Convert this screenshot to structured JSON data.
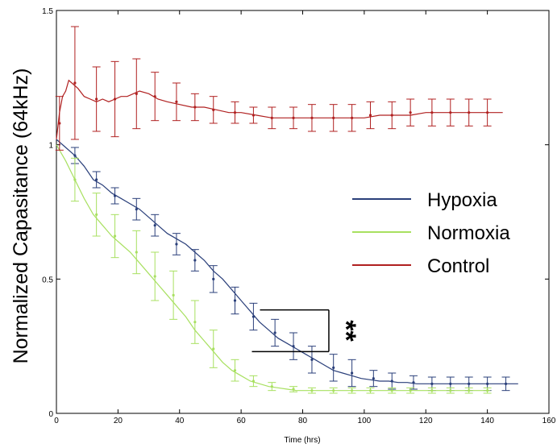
{
  "chart_data": {
    "type": "line",
    "title": "",
    "xlabel": "Time (hrs)",
    "ylabel": "Normalized Capasitance  (64kHz)",
    "xlim": [
      0,
      160
    ],
    "ylim": [
      0,
      1.5
    ],
    "xticks": [
      "0",
      "20",
      "40",
      "60",
      "80",
      "100",
      "120",
      "140",
      "160"
    ],
    "yticks": [
      "0",
      "0.5",
      "1",
      "1.5"
    ],
    "grid": false,
    "legend_position": "right",
    "significance_label": "**",
    "series": [
      {
        "name": "Hypoxia",
        "color": "#2a3f7a",
        "x": [
          0,
          3,
          6,
          9,
          12,
          15,
          18,
          21,
          24,
          27,
          30,
          33,
          36,
          39,
          42,
          45,
          48,
          51,
          54,
          57,
          60,
          63,
          66,
          69,
          72,
          75,
          78,
          81,
          84,
          87,
          90,
          93,
          96,
          99,
          102,
          105,
          108,
          111,
          114,
          117,
          120,
          123,
          126,
          129,
          132,
          135,
          138,
          141,
          144,
          147,
          150
        ],
        "y": [
          1.02,
          0.99,
          0.96,
          0.92,
          0.87,
          0.85,
          0.82,
          0.8,
          0.78,
          0.76,
          0.73,
          0.7,
          0.67,
          0.65,
          0.63,
          0.6,
          0.57,
          0.53,
          0.5,
          0.46,
          0.42,
          0.38,
          0.34,
          0.31,
          0.28,
          0.26,
          0.24,
          0.22,
          0.2,
          0.18,
          0.16,
          0.15,
          0.14,
          0.13,
          0.125,
          0.12,
          0.12,
          0.115,
          0.115,
          0.11,
          0.11,
          0.11,
          0.11,
          0.11,
          0.11,
          0.11,
          0.11,
          0.11,
          0.11,
          0.11,
          0.11
        ],
        "error_x": [
          6,
          13,
          19,
          26,
          32,
          39,
          45,
          51,
          58,
          64,
          71,
          77,
          83,
          90,
          96,
          103,
          109,
          116,
          122,
          128,
          134,
          140,
          146
        ],
        "error_y": [
          0.96,
          0.87,
          0.81,
          0.76,
          0.7,
          0.63,
          0.57,
          0.5,
          0.42,
          0.36,
          0.3,
          0.25,
          0.2,
          0.17,
          0.15,
          0.13,
          0.12,
          0.115,
          0.11,
          0.11,
          0.11,
          0.11,
          0.11
        ],
        "error_half": [
          0.03,
          0.03,
          0.03,
          0.04,
          0.04,
          0.04,
          0.04,
          0.05,
          0.05,
          0.05,
          0.05,
          0.05,
          0.05,
          0.05,
          0.05,
          0.03,
          0.03,
          0.025,
          0.025,
          0.025,
          0.025,
          0.025,
          0.025
        ]
      },
      {
        "name": "Normoxia",
        "color": "#a8e060",
        "x": [
          0,
          3,
          6,
          9,
          12,
          15,
          18,
          21,
          24,
          27,
          30,
          33,
          36,
          39,
          42,
          45,
          48,
          51,
          54,
          57,
          60,
          63,
          66,
          69,
          72,
          75,
          78,
          81,
          84,
          87,
          90,
          93,
          96,
          99,
          102,
          105,
          108,
          111,
          114,
          117,
          120,
          123,
          126,
          129,
          132,
          135,
          138,
          141
        ],
        "y": [
          1.0,
          0.94,
          0.87,
          0.8,
          0.74,
          0.7,
          0.66,
          0.63,
          0.6,
          0.56,
          0.52,
          0.48,
          0.44,
          0.4,
          0.36,
          0.31,
          0.27,
          0.23,
          0.19,
          0.16,
          0.14,
          0.12,
          0.11,
          0.1,
          0.095,
          0.09,
          0.085,
          0.085,
          0.085,
          0.085,
          0.085,
          0.085,
          0.085,
          0.085,
          0.085,
          0.085,
          0.085,
          0.085,
          0.085,
          0.085,
          0.085,
          0.085,
          0.085,
          0.085,
          0.085,
          0.085,
          0.085,
          0.085
        ],
        "error_x": [
          6,
          13,
          19,
          26,
          32,
          38,
          45,
          51,
          58,
          64,
          70,
          77,
          83,
          90,
          96,
          102,
          109,
          115,
          122,
          128,
          134,
          140
        ],
        "error_y": [
          0.87,
          0.74,
          0.66,
          0.6,
          0.51,
          0.44,
          0.34,
          0.24,
          0.16,
          0.12,
          0.1,
          0.09,
          0.085,
          0.085,
          0.085,
          0.085,
          0.085,
          0.085,
          0.085,
          0.085,
          0.085,
          0.085
        ],
        "error_half": [
          0.08,
          0.08,
          0.08,
          0.08,
          0.09,
          0.09,
          0.08,
          0.07,
          0.04,
          0.02,
          0.015,
          0.01,
          0.01,
          0.01,
          0.01,
          0.01,
          0.01,
          0.01,
          0.01,
          0.01,
          0.01,
          0.01
        ]
      },
      {
        "name": "Control",
        "color": "#b02020",
        "x": [
          0,
          1,
          2,
          3,
          4,
          5,
          7,
          9,
          11,
          13,
          15,
          17,
          19,
          21,
          23,
          25,
          27,
          30,
          33,
          36,
          40,
          44,
          48,
          52,
          56,
          60,
          65,
          70,
          75,
          80,
          85,
          90,
          95,
          100,
          105,
          110,
          115,
          120,
          125,
          130,
          135,
          140,
          145
        ],
        "y": [
          1.02,
          1.12,
          1.18,
          1.2,
          1.24,
          1.23,
          1.21,
          1.18,
          1.17,
          1.16,
          1.17,
          1.16,
          1.17,
          1.18,
          1.18,
          1.19,
          1.2,
          1.19,
          1.17,
          1.16,
          1.15,
          1.14,
          1.14,
          1.13,
          1.12,
          1.12,
          1.11,
          1.1,
          1.1,
          1.1,
          1.1,
          1.1,
          1.1,
          1.1,
          1.11,
          1.11,
          1.11,
          1.12,
          1.12,
          1.12,
          1.12,
          1.12,
          1.12
        ],
        "error_x": [
          1,
          6,
          13,
          19,
          26,
          32,
          39,
          45,
          51,
          58,
          64,
          70,
          77,
          83,
          90,
          96,
          102,
          109,
          115,
          122,
          128,
          134,
          140
        ],
        "error_y": [
          1.08,
          1.23,
          1.17,
          1.17,
          1.19,
          1.18,
          1.16,
          1.14,
          1.13,
          1.12,
          1.11,
          1.1,
          1.1,
          1.1,
          1.1,
          1.1,
          1.11,
          1.11,
          1.12,
          1.12,
          1.12,
          1.12,
          1.12
        ],
        "error_half": [
          0.1,
          0.21,
          0.12,
          0.14,
          0.13,
          0.09,
          0.07,
          0.05,
          0.05,
          0.04,
          0.03,
          0.04,
          0.04,
          0.05,
          0.05,
          0.05,
          0.05,
          0.05,
          0.05,
          0.05,
          0.05,
          0.05,
          0.05
        ]
      }
    ]
  }
}
